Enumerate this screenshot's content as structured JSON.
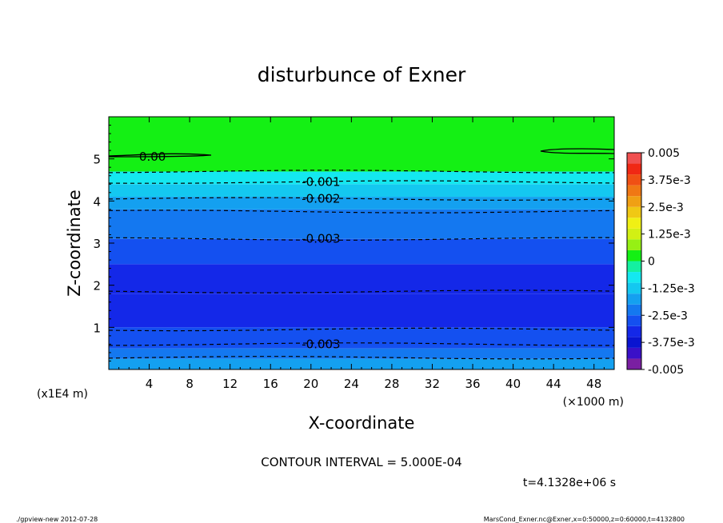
{
  "chart_data": {
    "type": "heatmap",
    "title": "disturbunce of Exner",
    "xlabel": "X-coordinate",
    "ylabel": "Z-coordinate",
    "x_unit": "(×1000 m)",
    "y_unit": "(x1E4 m)",
    "xlim": [
      0,
      50
    ],
    "ylim": [
      0,
      6
    ],
    "x_ticks": [
      "4",
      "8",
      "12",
      "16",
      "20",
      "24",
      "28",
      "32",
      "36",
      "40",
      "44",
      "48"
    ],
    "y_ticks": [
      "1",
      "2",
      "3",
      "4",
      "5"
    ],
    "contour_interval_text": "CONTOUR INTERVAL = 5.000E-04",
    "time_text": "t=4.1328e+06 s",
    "footer_left": "./gpview-new  2012-07-28",
    "footer_right": "MarsCond_Exner.nc@Exner,x=0:50000,z=0:60000,t=4132800",
    "colorbar": {
      "labels": [
        "0.005",
        "3.75e-3",
        "2.5e-3",
        "1.25e-3",
        "0",
        "-1.25e-3",
        "-2.5e-3",
        "-3.75e-3",
        "-0.005"
      ],
      "label_values": [
        0.005,
        0.00375,
        0.0025,
        0.00125,
        0,
        -0.00125,
        -0.0025,
        -0.00375,
        -0.005
      ],
      "levels": [
        -0.005,
        -0.0045,
        -0.004,
        -0.0035,
        -0.003,
        -0.0025,
        -0.002,
        -0.0015,
        -0.001,
        -0.0005,
        0,
        0.0005,
        0.001,
        0.0015,
        0.002,
        0.0025,
        0.003,
        0.0035,
        0.004,
        0.0045,
        0.005
      ],
      "colors": [
        "#7a1fa2",
        "#3a10c8",
        "#0a14d0",
        "#1428e8",
        "#1450f0",
        "#1478f0",
        "#14a0f0",
        "#14c8f0",
        "#14e8f0",
        "#14f0a0",
        "#14f014",
        "#96f014",
        "#d2f014",
        "#f0f014",
        "#f0c814",
        "#f0a014",
        "#f07814",
        "#f05014",
        "#f02814",
        "#f05050",
        "#f08c8c"
      ]
    },
    "bands": [
      {
        "z": [
          0.0,
          0.25
        ],
        "color": "#14a0f0"
      },
      {
        "z": [
          0.25,
          0.5
        ],
        "color": "#1478f0"
      },
      {
        "z": [
          0.5,
          1.0
        ],
        "color": "#1450f0"
      },
      {
        "z": [
          1.0,
          1.8
        ],
        "color": "#1428e8"
      },
      {
        "z": [
          1.8,
          2.5
        ],
        "color": "#1428e8"
      },
      {
        "z": [
          2.5,
          3.1
        ],
        "color": "#1450f0"
      },
      {
        "z": [
          3.1,
          3.8
        ],
        "color": "#1478f0"
      },
      {
        "z": [
          3.8,
          4.1
        ],
        "color": "#14a0f0"
      },
      {
        "z": [
          4.1,
          4.4
        ],
        "color": "#14c8f0"
      },
      {
        "z": [
          4.4,
          4.7
        ],
        "color": "#14e8f0"
      },
      {
        "z": [
          4.7,
          6.0
        ],
        "color": "#14f014"
      }
    ],
    "contours": [
      {
        "value": 0,
        "label": "0.00",
        "style": "solid",
        "z": 5.05,
        "label_x": 3,
        "kind": "edge"
      },
      {
        "value": -0.001,
        "label": "-0.001",
        "style": "dashed",
        "z": 4.45,
        "label_x": 21
      },
      {
        "value": -0.0015,
        "label": "",
        "style": "dashed",
        "z": 4.7
      },
      {
        "value": -0.002,
        "label": "-0.002",
        "style": "dashed",
        "z": 4.05,
        "label_x": 21
      },
      {
        "value": -0.0025,
        "label": "",
        "style": "dashed",
        "z": 3.75
      },
      {
        "value": -0.003,
        "label": "-0.003",
        "style": "dashed",
        "z": 3.1,
        "label_x": 21
      },
      {
        "value": -0.0035,
        "label": "",
        "style": "dashed",
        "z": 1.85
      },
      {
        "value": -0.0035,
        "label": "",
        "style": "dashed",
        "z": 0.95
      },
      {
        "value": -0.003,
        "label": "-0.003",
        "style": "dashed",
        "z": 0.6,
        "label_x": 21
      },
      {
        "value": -0.0025,
        "label": "",
        "style": "dashed",
        "z": 0.28
      }
    ]
  }
}
